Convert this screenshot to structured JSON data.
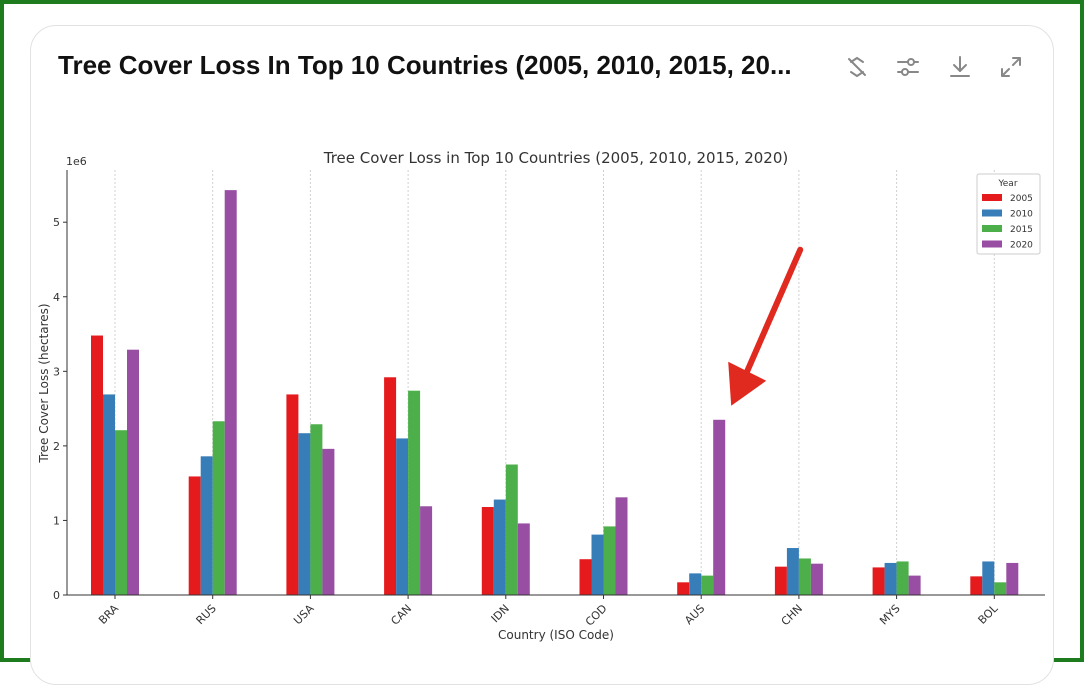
{
  "header": {
    "title": "Tree Cover Loss In Top 10 Countries (2005, 2010, 2015, 20...",
    "tools": [
      "hide-code-icon",
      "adjust-icon",
      "download-icon",
      "expand-icon"
    ]
  },
  "colors": {
    "2005": "#e41a1c",
    "2010": "#377eb8",
    "2015": "#4daf4a",
    "2020": "#984ea3",
    "arrow": "#e02a1f"
  },
  "chart_data": {
    "type": "bar",
    "title": "Tree Cover Loss in Top 10 Countries (2005, 2010, 2015, 2020)",
    "xlabel": "Country (ISO Code)",
    "ylabel": "Tree Cover Loss (hectares)",
    "y_offset_label": "1e6",
    "ylim": [
      0,
      5.7
    ],
    "yticks": [
      0,
      1,
      2,
      3,
      4,
      5
    ],
    "grid": "vertical",
    "legend_title": "Year",
    "legend_position": "top-right",
    "categories": [
      "BRA",
      "RUS",
      "USA",
      "CAN",
      "IDN",
      "COD",
      "AUS",
      "CHN",
      "MYS",
      "BOL"
    ],
    "series": [
      {
        "name": "2005",
        "values": [
          3.48,
          1.59,
          2.69,
          2.92,
          1.18,
          0.48,
          0.17,
          0.38,
          0.37,
          0.25
        ]
      },
      {
        "name": "2010",
        "values": [
          2.69,
          1.86,
          2.17,
          2.1,
          1.28,
          0.81,
          0.29,
          0.63,
          0.43,
          0.45
        ]
      },
      {
        "name": "2015",
        "values": [
          2.21,
          2.33,
          2.29,
          2.74,
          1.75,
          0.92,
          0.26,
          0.49,
          0.45,
          0.17
        ]
      },
      {
        "name": "2020",
        "values": [
          3.29,
          5.43,
          1.96,
          1.19,
          0.96,
          1.31,
          2.35,
          0.42,
          0.26,
          0.43
        ]
      }
    ],
    "annotation": {
      "type": "arrow",
      "target_category": "AUS",
      "target_series": "2020"
    }
  }
}
